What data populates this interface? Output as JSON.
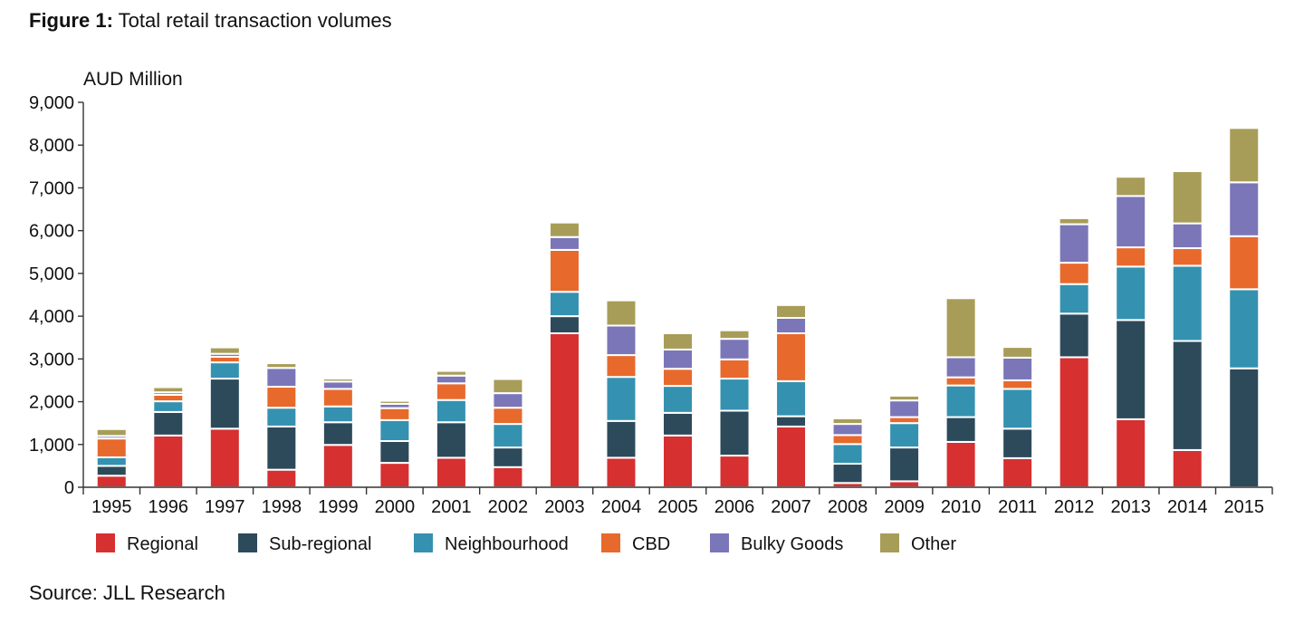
{
  "figure": {
    "label": "Figure 1:",
    "title": "Total retail transaction volumes",
    "source": "Source: JLL Research"
  },
  "chart_data": {
    "type": "bar",
    "stacked": true,
    "ylabel": "AUD Million",
    "ylim": [
      0,
      9000
    ],
    "yticks": [
      0,
      1000,
      2000,
      3000,
      4000,
      5000,
      6000,
      7000,
      8000,
      9000
    ],
    "ytick_labels": [
      "0",
      "1,000",
      "2,000",
      "3,000",
      "4,000",
      "5,000",
      "6,000",
      "7,000",
      "8,000",
      "9,000"
    ],
    "grid": false,
    "legend_position": "bottom",
    "categories": [
      "1995",
      "1996",
      "1997",
      "1998",
      "1999",
      "2000",
      "2001",
      "2002",
      "2003",
      "2004",
      "2005",
      "2006",
      "2007",
      "2008",
      "2009",
      "2010",
      "2011",
      "2012",
      "2013",
      "2014",
      "2015"
    ],
    "series": [
      {
        "name": "Regional",
        "color": "#d63031",
        "values": [
          270,
          1210,
          1370,
          410,
          990,
          570,
          690,
          470,
          3600,
          690,
          1210,
          740,
          1420,
          100,
          140,
          1060,
          680,
          3040,
          1590,
          870,
          0
        ]
      },
      {
        "name": "Sub-regional",
        "color": "#2d4a5a",
        "values": [
          230,
          550,
          1170,
          1010,
          530,
          510,
          830,
          460,
          400,
          860,
          530,
          1050,
          240,
          450,
          790,
          580,
          690,
          1020,
          2320,
          2550,
          2780
        ]
      },
      {
        "name": "Neighbourhood",
        "color": "#3591b0",
        "values": [
          200,
          250,
          380,
          440,
          370,
          490,
          520,
          550,
          570,
          1030,
          630,
          750,
          820,
          460,
          570,
          740,
          930,
          690,
          1250,
          1760,
          1850
        ]
      },
      {
        "name": "CBD",
        "color": "#e8692c",
        "values": [
          440,
          150,
          130,
          490,
          410,
          280,
          390,
          380,
          980,
          510,
          400,
          450,
          1120,
          210,
          140,
          190,
          200,
          500,
          450,
          410,
          1240
        ]
      },
      {
        "name": "Bulky Goods",
        "color": "#7b76b8",
        "values": [
          60,
          60,
          70,
          440,
          170,
          100,
          180,
          340,
          300,
          690,
          450,
          480,
          360,
          260,
          390,
          470,
          530,
          900,
          1200,
          580,
          1260
        ]
      },
      {
        "name": "Other",
        "color": "#a89d58",
        "values": [
          160,
          120,
          150,
          110,
          70,
          70,
          110,
          330,
          340,
          590,
          380,
          200,
          300,
          130,
          110,
          1380,
          250,
          140,
          450,
          1220,
          1270
        ]
      }
    ]
  }
}
